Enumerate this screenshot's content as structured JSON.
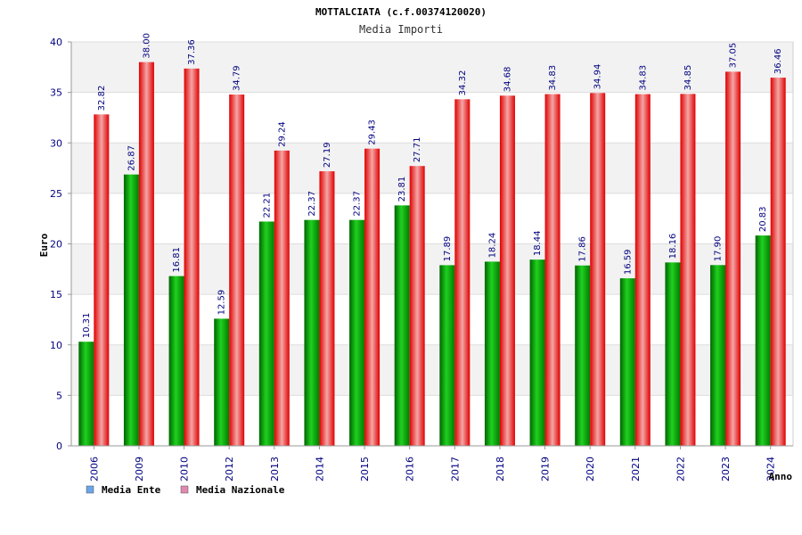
{
  "chart_data": {
    "type": "bar",
    "title": "MOTTALCIATA (c.f.00374120020)",
    "subtitle": "Media Importi",
    "xlabel": "Anno",
    "ylabel": "Euro",
    "ylim": [
      0,
      40
    ],
    "yticks": [
      0,
      5,
      10,
      15,
      20,
      25,
      30,
      35,
      40
    ],
    "grid": true,
    "legend_position": "bottom-left",
    "categories": [
      "2006",
      "2009",
      "2010",
      "2012",
      "2013",
      "2014",
      "2015",
      "2016",
      "2017",
      "2018",
      "2019",
      "2020",
      "2021",
      "2022",
      "2023",
      "2024"
    ],
    "series": [
      {
        "name": "Media Ente",
        "color": "#00a000",
        "legend_color": "#6aa6e8",
        "values": [
          10.31,
          26.87,
          16.81,
          12.59,
          22.21,
          22.37,
          22.37,
          23.81,
          17.89,
          18.24,
          18.44,
          17.86,
          16.59,
          18.16,
          17.9,
          20.83
        ],
        "labels": [
          "10.31",
          "26.87",
          "16.81",
          "12.59",
          "22.21",
          "22.37",
          "22.37",
          "23.81",
          "17.89",
          "18.24",
          "18.44",
          "17.86",
          "16.59",
          "18.16",
          "17.90",
          "20.83"
        ]
      },
      {
        "name": "Media Nazionale",
        "color": "#e00000",
        "legend_color": "#e08ab0",
        "values": [
          32.82,
          38.0,
          37.36,
          34.79,
          29.24,
          27.19,
          29.43,
          27.71,
          34.32,
          34.68,
          34.83,
          34.94,
          34.83,
          34.85,
          37.05,
          36.46
        ],
        "labels": [
          "32.82",
          "38.00",
          "37.36",
          "34.79",
          "29.24",
          "27.19",
          "29.43",
          "27.71",
          "34.32",
          "34.68",
          "34.83",
          "34.94",
          "34.83",
          "34.85",
          "37.05",
          "36.46"
        ]
      }
    ]
  }
}
